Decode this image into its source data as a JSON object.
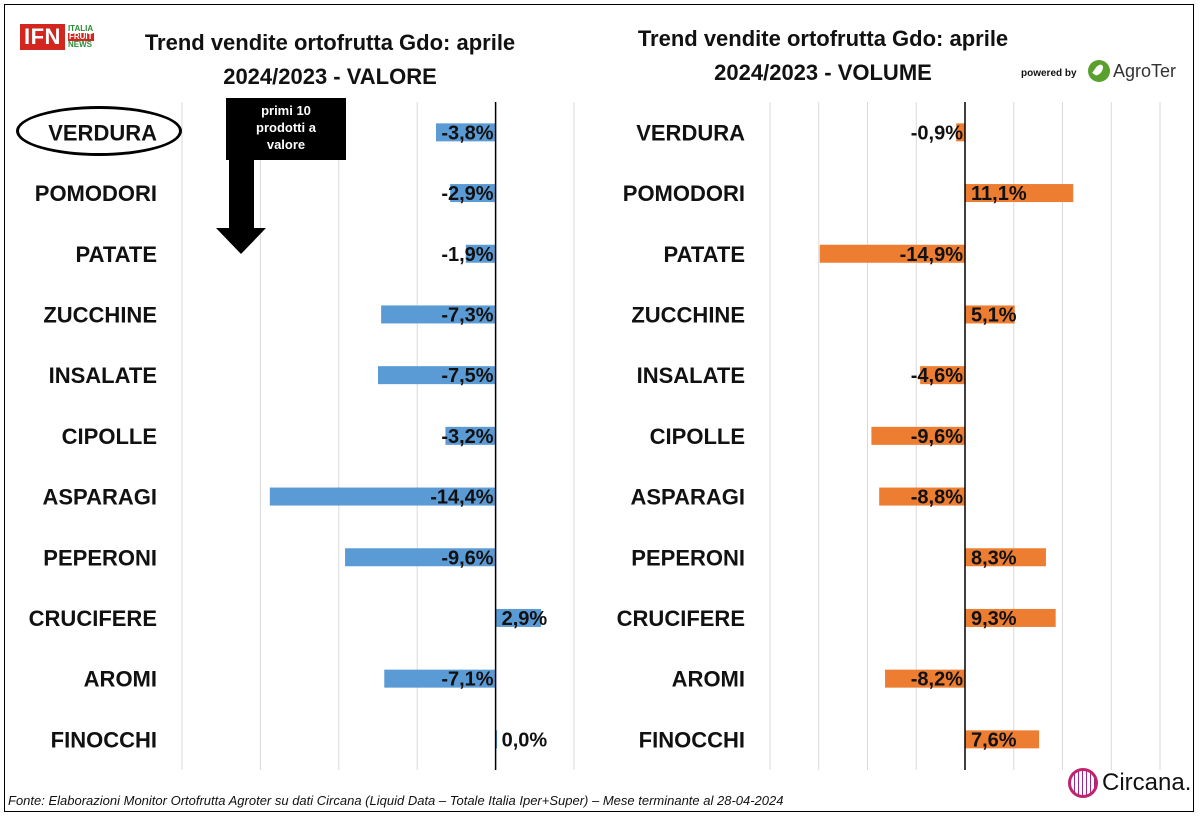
{
  "header": {
    "logo_ifn": {
      "main": "IFN",
      "line1": "ITALIA",
      "line2": "FRUIT",
      "line3": "NEWS"
    },
    "powered_by": "powered by",
    "agroter_logo": "AgroTer"
  },
  "annotation": {
    "line1": "primi 10",
    "line2": "prodotti a",
    "line3": "valore"
  },
  "footer": {
    "source": "Fonte: Elaborazioni Monitor Ortofrutta Agroter su dati Circana (Liquid Data – Totale Italia Iper+Super) – Mese terminante al 28-04-2024",
    "circana_logo": "Circana."
  },
  "colors": {
    "valore": "#5b9bd5",
    "volume": "#ed7d31",
    "grid": "#d9d9d9",
    "axis": "#000000"
  },
  "chart_data": [
    {
      "type": "bar",
      "orientation": "horizontal",
      "title_line1": "Trend vendite ortofrutta Gdo: aprile",
      "title_line2": "2024/2023 - VALORE",
      "categories": [
        "VERDURA",
        "POMODORI",
        "PATATE",
        "ZUCCHINE",
        "INSALATE",
        "CIPOLLE",
        "ASPARAGI",
        "PEPERONI",
        "CRUCIFERE",
        "AROMI",
        "FINOCCHI"
      ],
      "values": [
        -3.8,
        -2.9,
        -1.9,
        -7.3,
        -7.5,
        -3.2,
        -14.4,
        -9.6,
        2.9,
        -7.1,
        0.0
      ],
      "labels": [
        "-3,8%",
        "-2,9%",
        "-1,9%",
        "-7,3%",
        "-7,5%",
        "-3,2%",
        "-14,4%",
        "-9,6%",
        "2,9%",
        "-7,1%",
        "0,0%"
      ],
      "xlim": [
        -20,
        5
      ],
      "grid": true,
      "color": "#5b9bd5"
    },
    {
      "type": "bar",
      "orientation": "horizontal",
      "title_line1": "Trend vendite ortofrutta Gdo: aprile",
      "title_line2": "2024/2023 - VOLUME",
      "categories": [
        "VERDURA",
        "POMODORI",
        "PATATE",
        "ZUCCHINE",
        "INSALATE",
        "CIPOLLE",
        "ASPARAGI",
        "PEPERONI",
        "CRUCIFERE",
        "AROMI",
        "FINOCCHI"
      ],
      "values": [
        -0.9,
        11.1,
        -14.9,
        5.1,
        -4.6,
        -9.6,
        -8.8,
        8.3,
        9.3,
        -8.2,
        7.6
      ],
      "labels": [
        "-0,9%",
        "11,1%",
        "-14,9%",
        "5,1%",
        "-4,6%",
        "-9,6%",
        "-8,8%",
        "8,3%",
        "9,3%",
        "-8,2%",
        "7,6%"
      ],
      "xlim": [
        -20,
        20
      ],
      "grid": true,
      "color": "#ed7d31"
    }
  ]
}
